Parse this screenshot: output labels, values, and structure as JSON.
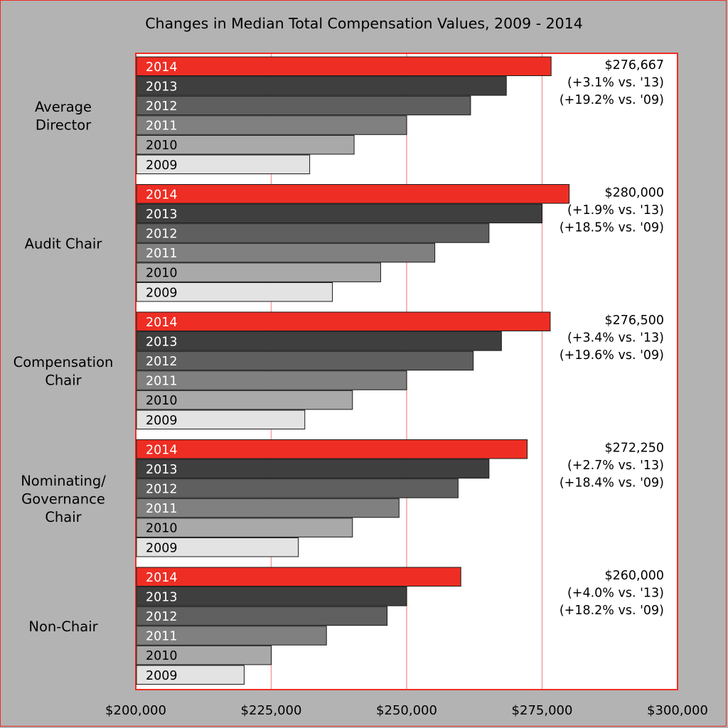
{
  "chart_data": {
    "type": "bar",
    "title": "Changes in Median Total Compensation Values, 2009 - 2014",
    "orientation": "horizontal",
    "x_ticks": [
      "$200,000",
      "$225,000",
      "$250,000",
      "$275,000",
      "$300,000"
    ],
    "xlim": [
      200000,
      300000
    ],
    "grid": true,
    "legend": "none",
    "series_years": [
      "2014",
      "2013",
      "2012",
      "2011",
      "2010",
      "2009"
    ],
    "colors": {
      "2014": "#ee2e24",
      "2013": "#3f3f3f",
      "2012": "#5f5f5f",
      "2011": "#808080",
      "2010": "#a9a9a9",
      "2009": "#e3e3e3",
      "accent": "#ee2e24",
      "background": "#b3b3b3",
      "plot": "#ffffff"
    },
    "groups": [
      {
        "name": "Average Director",
        "name_lines": [
          "Average",
          "Director"
        ],
        "values": [
          276667,
          268400,
          261800,
          250000,
          240300,
          232100
        ],
        "annotation": [
          "$276,667",
          "(+3.1% vs. '13)",
          "(+19.2% vs. '09)"
        ]
      },
      {
        "name": "Audit Chair",
        "name_lines": [
          "Audit Chair"
        ],
        "values": [
          280000,
          275000,
          265200,
          255200,
          245200,
          236300
        ],
        "annotation": [
          "$280,000",
          "(+1.9% vs. '13)",
          "(+18.5% vs. '09)"
        ]
      },
      {
        "name": "Compensation Chair",
        "name_lines": [
          "Compensation",
          "Chair"
        ],
        "values": [
          276500,
          267500,
          262300,
          250000,
          240000,
          231200
        ],
        "annotation": [
          "$276,500",
          "(+3.4% vs. '13)",
          "(+19.6% vs. '09)"
        ]
      },
      {
        "name": "Nominating/ Governance Chair",
        "name_lines": [
          "Nominating/",
          "Governance",
          "Chair"
        ],
        "values": [
          272250,
          265200,
          259500,
          248600,
          240000,
          230000
        ],
        "annotation": [
          "$272,250",
          "(+2.7% vs. '13)",
          "(+18.4% vs. '09)"
        ]
      },
      {
        "name": "Non-Chair",
        "name_lines": [
          "Non-Chair"
        ],
        "values": [
          260000,
          250000,
          246400,
          235200,
          225000,
          220000
        ],
        "annotation": [
          "$260,000",
          "(+4.0% vs. '13)",
          "(+18.2% vs. '09)"
        ]
      }
    ]
  }
}
